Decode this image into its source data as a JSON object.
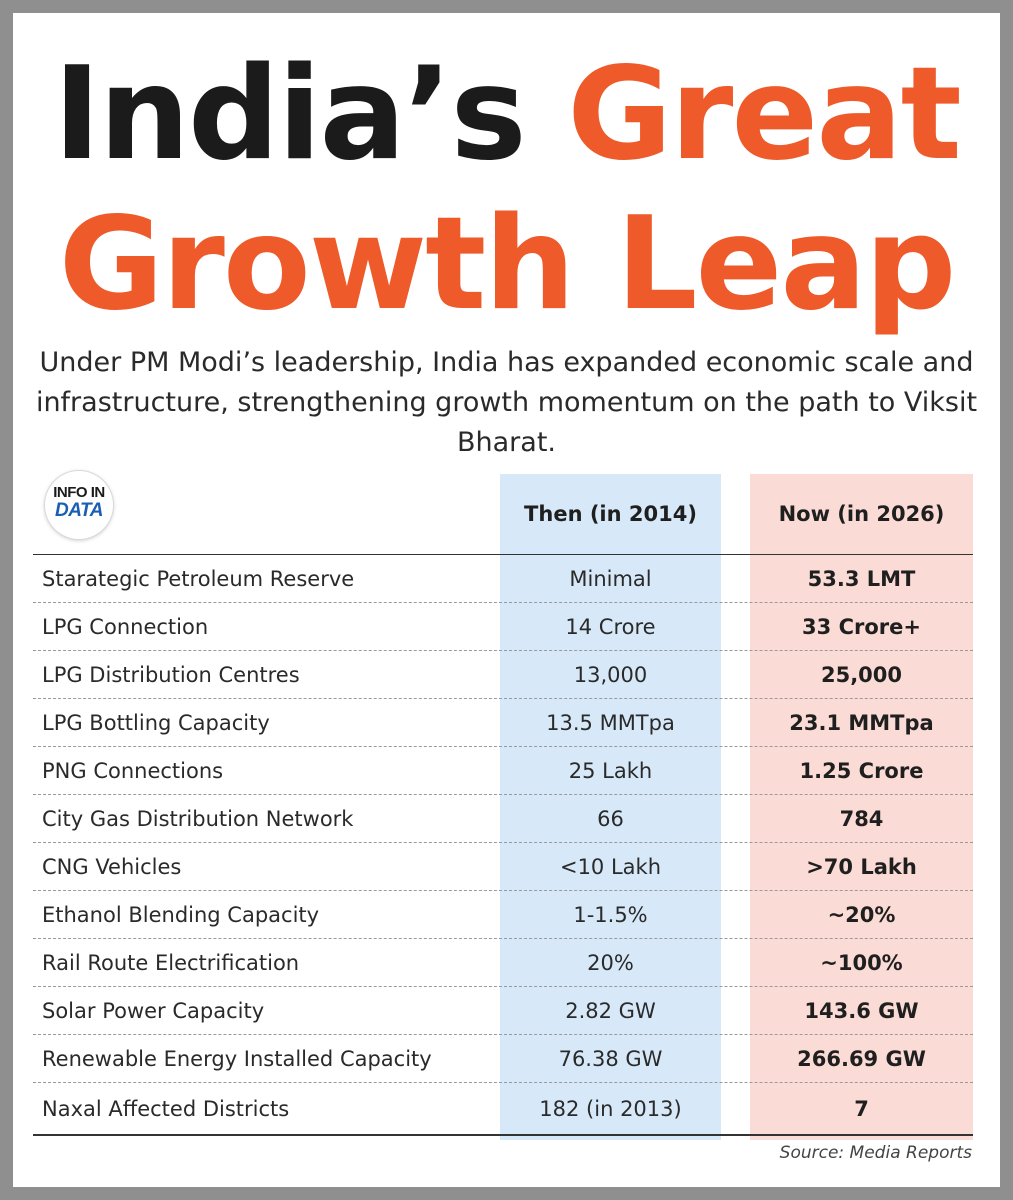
{
  "title": {
    "word1": "India’s",
    "word2": "Great",
    "line2": "Growth Leap"
  },
  "subtitle": "Under PM Modi’s leadership, India has expanded economic scale and infrastructure, strengthening growth momentum on the path to Viksit Bharat.",
  "logo": {
    "top": "INFO IN",
    "bottom": "DATA"
  },
  "colors": {
    "accent": "#ee5a2a",
    "then_column": "#d7e9f9",
    "now_column": "#fbdbd5"
  },
  "table": {
    "headers": {
      "then": "Then (in 2014)",
      "now": "Now (in 2026)"
    },
    "rows": [
      {
        "label": "Starategic Petroleum Reserve",
        "then": "Minimal",
        "now": "53.3 LMT"
      },
      {
        "label": "LPG Connection",
        "then": "14 Crore",
        "now": "33 Crore+"
      },
      {
        "label": "LPG Distribution Centres",
        "then": "13,000",
        "now": "25,000"
      },
      {
        "label": "LPG Bottling Capacity",
        "then": "13.5 MMTpa",
        "now": "23.1 MMTpa"
      },
      {
        "label": "PNG Connections",
        "then": "25 Lakh",
        "now": "1.25 Crore"
      },
      {
        "label": "City Gas Distribution Network",
        "then": "66",
        "now": "784"
      },
      {
        "label": "CNG Vehicles",
        "then": "<10 Lakh",
        "now": ">70 Lakh"
      },
      {
        "label": "Ethanol Blending Capacity",
        "then": "1-1.5%",
        "now": "~20%"
      },
      {
        "label": "Rail Route Electrification",
        "then": "20%",
        "now": "~100%"
      },
      {
        "label": "Solar Power Capacity",
        "then": "2.82 GW",
        "now": "143.6 GW"
      },
      {
        "label": "Renewable Energy Installed Capacity",
        "then": "76.38 GW",
        "now": "266.69 GW"
      },
      {
        "label": "Naxal Affected Districts",
        "then": "182 (in 2013)",
        "now": "7"
      }
    ]
  },
  "source": "Source: Media Reports"
}
